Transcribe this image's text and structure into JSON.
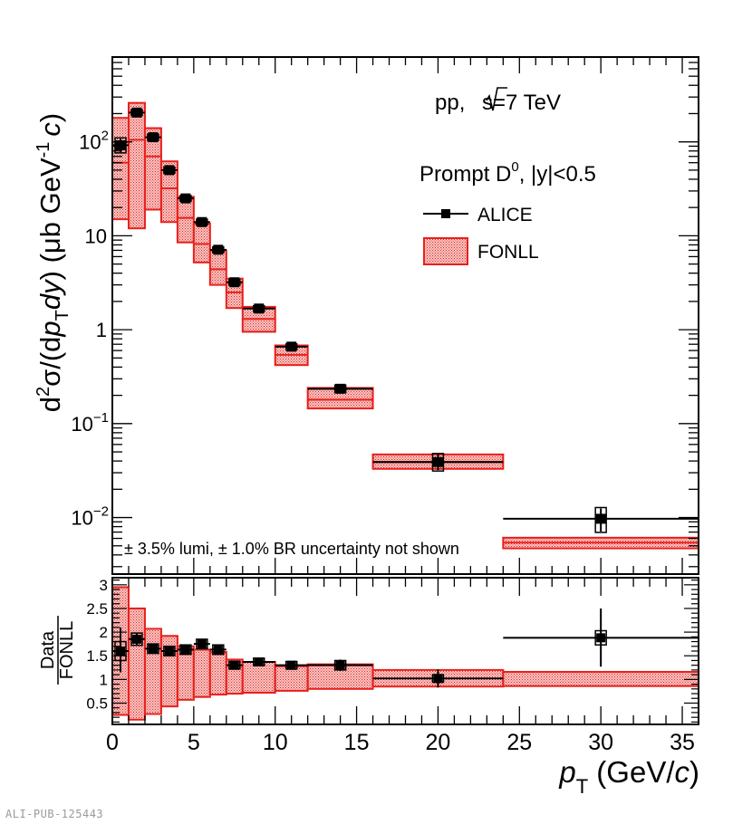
{
  "watermark": "ALI-PUB-125443",
  "chart_data": [
    {
      "type": "scatter",
      "name": "cross-section",
      "title_label": "pp, √s=7 TeV",
      "title_parts": {
        "prefix": "pp, ",
        "sqrt": "s",
        "suffix": "=7 TeV"
      },
      "ylabel": "d²σ/(dp_T dy) (μb GeV⁻¹ c)",
      "ylabel_parts": {
        "d": "d",
        "sup2": "2",
        "sigma_part": "σ/(d",
        "p": "p",
        "T": "T",
        "dy": "dy",
        "unit": ") (μb GeV",
        "minus1": "-1",
        "c": "c",
        "close": ")"
      },
      "yscale": "log",
      "ylim": [
        0.0025,
        800
      ],
      "xlim": [
        0,
        36
      ],
      "y_tick_labels": [
        {
          "value": 0.01,
          "base": "10",
          "exp": "−2"
        },
        {
          "value": 0.1,
          "base": "10",
          "exp": "−1"
        },
        {
          "value": 1,
          "base": "1",
          "exp": ""
        },
        {
          "value": 10,
          "base": "10",
          "exp": ""
        },
        {
          "value": 100,
          "base": "10",
          "exp": "2"
        }
      ],
      "legend": {
        "placement": "top-right",
        "header": "Prompt D⁰, |y|<0.5",
        "header_parts": {
          "pre": "Prompt D",
          "sup": "0",
          "post": ", |y|<0.5"
        },
        "entries": [
          "ALICE",
          "FONLL"
        ]
      },
      "annotation": "± 3.5% lumi, ± 1.0% BR uncertainty not shown",
      "series": [
        {
          "name": "ALICE",
          "color": "#000000",
          "points": [
            {
              "x": 0.5,
              "xlo": 0,
              "xhi": 1,
              "y": 92,
              "ylo": 78,
              "yhi": 108
            },
            {
              "x": 1.5,
              "xlo": 1,
              "xhi": 2,
              "y": 205,
              "ylo": 195,
              "yhi": 215
            },
            {
              "x": 2.5,
              "xlo": 2,
              "xhi": 3,
              "y": 112,
              "ylo": 106,
              "yhi": 118
            },
            {
              "x": 3.5,
              "xlo": 3,
              "xhi": 4,
              "y": 50,
              "ylo": 47.5,
              "yhi": 52.5
            },
            {
              "x": 4.5,
              "xlo": 4,
              "xhi": 5,
              "y": 25,
              "ylo": 23.8,
              "yhi": 26.2
            },
            {
              "x": 5.5,
              "xlo": 5,
              "xhi": 6,
              "y": 14,
              "ylo": 13.3,
              "yhi": 14.7
            },
            {
              "x": 6.5,
              "xlo": 6,
              "xhi": 7,
              "y": 7.1,
              "ylo": 6.75,
              "yhi": 7.45
            },
            {
              "x": 7.5,
              "xlo": 7,
              "xhi": 8,
              "y": 3.2,
              "ylo": 3.04,
              "yhi": 3.36
            },
            {
              "x": 9,
              "xlo": 8,
              "xhi": 10,
              "y": 1.68,
              "ylo": 1.6,
              "yhi": 1.76
            },
            {
              "x": 11,
              "xlo": 10,
              "xhi": 12,
              "y": 0.66,
              "ylo": 0.63,
              "yhi": 0.69
            },
            {
              "x": 14,
              "xlo": 12,
              "xhi": 16,
              "y": 0.235,
              "ylo": 0.218,
              "yhi": 0.252
            },
            {
              "x": 20,
              "xlo": 16,
              "xhi": 24,
              "y": 0.039,
              "ylo": 0.032,
              "yhi": 0.047
            },
            {
              "x": 30,
              "xlo": 24,
              "xhi": 36,
              "y": 0.0097,
              "ylo": 0.0071,
              "yhi": 0.0125
            }
          ]
        },
        {
          "name": "FONLL",
          "color": "#e8201c",
          "bands": [
            {
              "xlo": 0,
              "xhi": 1,
              "lo": 15,
              "hi": 180,
              "central": 60
            },
            {
              "xlo": 1,
              "xhi": 2,
              "lo": 12,
              "hi": 260,
              "central": 105
            },
            {
              "xlo": 2,
              "xhi": 3,
              "lo": 19,
              "hi": 140,
              "central": 70
            },
            {
              "xlo": 3,
              "xhi": 4,
              "lo": 14,
              "hi": 62,
              "central": 32
            },
            {
              "xlo": 4,
              "xhi": 5,
              "lo": 8.5,
              "hi": 26,
              "central": 15.5
            },
            {
              "xlo": 5,
              "xhi": 6,
              "lo": 5.2,
              "hi": 13.5,
              "central": 8.2
            },
            {
              "xlo": 6,
              "xhi": 7,
              "lo": 3,
              "hi": 7,
              "central": 4.4
            },
            {
              "xlo": 7,
              "xhi": 8,
              "lo": 1.7,
              "hi": 3.5,
              "central": 2.5
            },
            {
              "xlo": 8,
              "xhi": 10,
              "lo": 0.95,
              "hi": 1.75,
              "central": 1.3
            },
            {
              "xlo": 10,
              "xhi": 12,
              "lo": 0.42,
              "hi": 0.68,
              "central": 0.54
            },
            {
              "xlo": 12,
              "xhi": 16,
              "lo": 0.145,
              "hi": 0.24,
              "central": 0.18
            },
            {
              "xlo": 16,
              "xhi": 24,
              "lo": 0.033,
              "hi": 0.047,
              "central": 0.039
            },
            {
              "xlo": 24,
              "xhi": 36,
              "lo": 0.0047,
              "hi": 0.0061,
              "central": 0.0054
            }
          ]
        }
      ]
    },
    {
      "type": "scatter",
      "name": "ratio",
      "ylabel_num": "Data",
      "ylabel_den": "FONLL",
      "xlabel": "p_T (GeV/c)",
      "xlabel_parts": {
        "p": "p",
        "T": "T",
        "mid": " (GeV/",
        "c": "c",
        "close": ")"
      },
      "xlim": [
        0,
        36
      ],
      "ylim": [
        0.05,
        3.15
      ],
      "x_ticks": [
        0,
        5,
        10,
        15,
        20,
        25,
        30,
        35
      ],
      "y_ticks": [
        0.5,
        1,
        1.5,
        2,
        2.5,
        3
      ],
      "y_tick_labels": [
        "0.5",
        "1",
        "1.5",
        "2",
        "2.5",
        "3"
      ],
      "x_tick_labels": [
        "0",
        "5",
        "10",
        "15",
        "20",
        "25",
        "30",
        "35"
      ],
      "reference_line": 1,
      "series": [
        {
          "name": "ALICE",
          "points": [
            {
              "x": 0.5,
              "xlo": 0,
              "xhi": 1,
              "y": 1.6,
              "ylo": 1.15,
              "yhi": 2.1,
              "syst": 0.2
            },
            {
              "x": 1.5,
              "xlo": 1,
              "xhi": 2,
              "y": 1.85,
              "ylo": 1.72,
              "yhi": 1.98,
              "syst": 0.13
            },
            {
              "x": 2.5,
              "xlo": 2,
              "xhi": 3,
              "y": 1.65,
              "ylo": 1.56,
              "yhi": 1.74,
              "syst": 0.1
            },
            {
              "x": 3.5,
              "xlo": 3,
              "xhi": 4,
              "y": 1.6,
              "ylo": 1.52,
              "yhi": 1.68,
              "syst": 0.1
            },
            {
              "x": 4.5,
              "xlo": 4,
              "xhi": 5,
              "y": 1.63,
              "ylo": 1.55,
              "yhi": 1.71,
              "syst": 0.1
            },
            {
              "x": 5.5,
              "xlo": 5,
              "xhi": 6,
              "y": 1.75,
              "ylo": 1.66,
              "yhi": 1.84,
              "syst": 0.1
            },
            {
              "x": 6.5,
              "xlo": 6,
              "xhi": 7,
              "y": 1.63,
              "ylo": 1.55,
              "yhi": 1.71,
              "syst": 0.1
            },
            {
              "x": 7.5,
              "xlo": 7,
              "xhi": 8,
              "y": 1.3,
              "ylo": 1.23,
              "yhi": 1.37,
              "syst": 0.08
            },
            {
              "x": 9,
              "xlo": 8,
              "xhi": 10,
              "y": 1.37,
              "ylo": 1.3,
              "yhi": 1.44,
              "syst": 0.08
            },
            {
              "x": 11,
              "xlo": 10,
              "xhi": 12,
              "y": 1.3,
              "ylo": 1.23,
              "yhi": 1.37,
              "syst": 0.08
            },
            {
              "x": 14,
              "xlo": 12,
              "xhi": 16,
              "y": 1.3,
              "ylo": 1.18,
              "yhi": 1.42,
              "syst": 0.1
            },
            {
              "x": 20,
              "xlo": 16,
              "xhi": 24,
              "y": 1.02,
              "ylo": 0.83,
              "yhi": 1.21,
              "syst": 0.08
            },
            {
              "x": 30,
              "xlo": 24,
              "xhi": 36,
              "y": 1.88,
              "ylo": 1.27,
              "yhi": 2.5,
              "syst": 0.15
            }
          ]
        },
        {
          "name": "FONLL",
          "bands": [
            {
              "xlo": 0,
              "xhi": 1,
              "lo": 0.25,
              "hi": 2.95
            },
            {
              "xlo": 1,
              "xhi": 2,
              "lo": 0.15,
              "hi": 2.5
            },
            {
              "xlo": 2,
              "xhi": 3,
              "lo": 0.27,
              "hi": 2.07
            },
            {
              "xlo": 3,
              "xhi": 4,
              "lo": 0.43,
              "hi": 1.92
            },
            {
              "xlo": 4,
              "xhi": 5,
              "lo": 0.57,
              "hi": 1.7
            },
            {
              "xlo": 5,
              "xhi": 6,
              "lo": 0.63,
              "hi": 1.63
            },
            {
              "xlo": 6,
              "xhi": 7,
              "lo": 0.68,
              "hi": 1.58
            },
            {
              "xlo": 7,
              "xhi": 8,
              "lo": 0.7,
              "hi": 1.42
            },
            {
              "xlo": 8,
              "xhi": 10,
              "lo": 0.72,
              "hi": 1.37
            },
            {
              "xlo": 10,
              "xhi": 12,
              "lo": 0.76,
              "hi": 1.28
            },
            {
              "xlo": 12,
              "xhi": 16,
              "lo": 0.8,
              "hi": 1.32
            },
            {
              "xlo": 16,
              "xhi": 24,
              "lo": 0.85,
              "hi": 1.2
            },
            {
              "xlo": 24,
              "xhi": 36,
              "lo": 0.86,
              "hi": 1.16
            }
          ]
        }
      ]
    }
  ]
}
